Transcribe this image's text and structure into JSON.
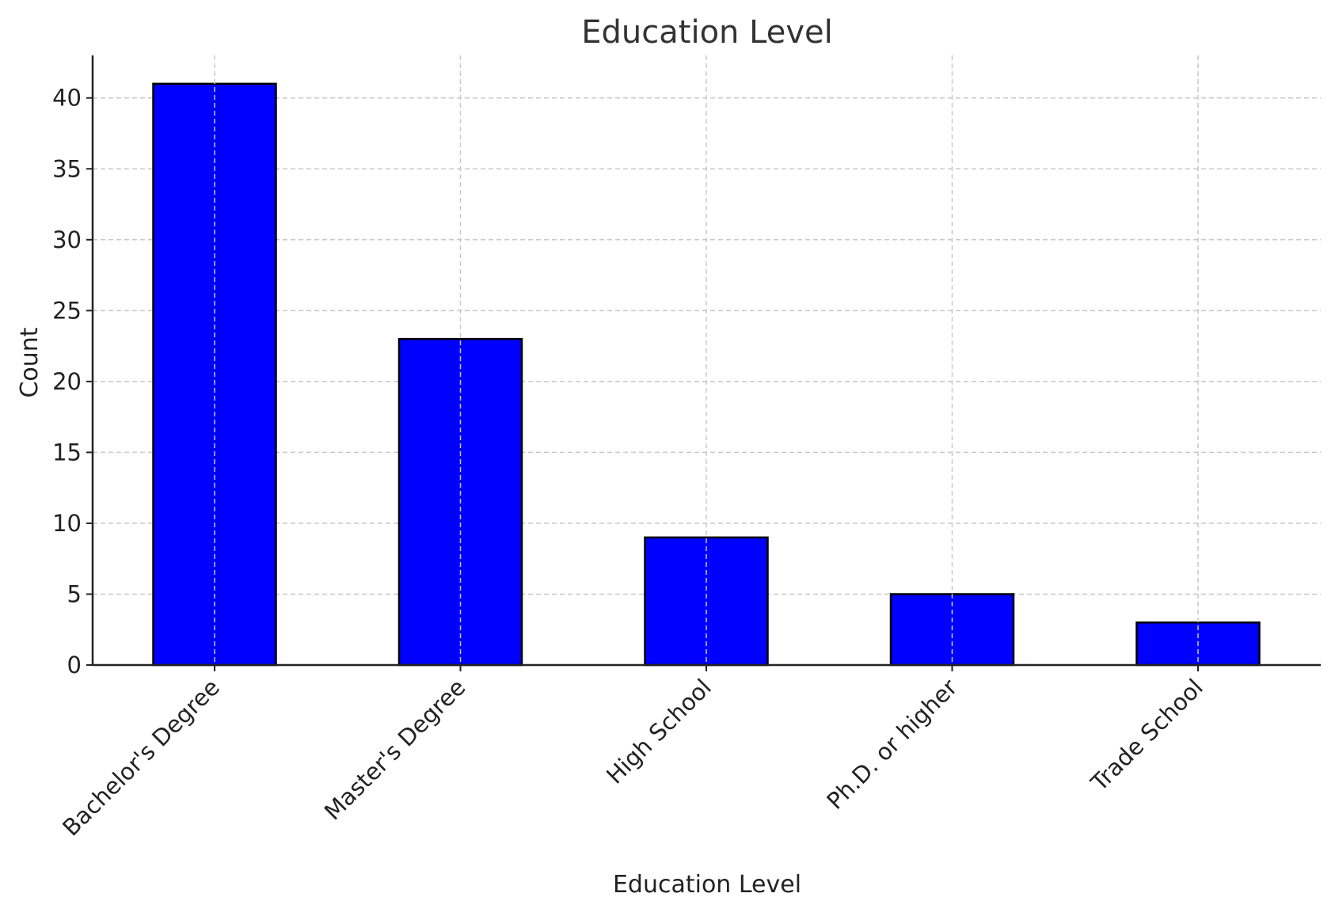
{
  "chart_data": {
    "type": "bar",
    "title": "Education Level",
    "xlabel": "Education Level",
    "ylabel": "Count",
    "categories": [
      "Bachelor's Degree",
      "Master's Degree",
      "High School",
      "Ph.D. or higher",
      "Trade School"
    ],
    "values": [
      41,
      23,
      9,
      5,
      3
    ],
    "ylim": [
      0,
      43
    ],
    "yticks": [
      0,
      5,
      10,
      15,
      20,
      25,
      30,
      35,
      40
    ],
    "grid": true,
    "bar_color": "#0000ff",
    "edge_color": "#000000"
  }
}
